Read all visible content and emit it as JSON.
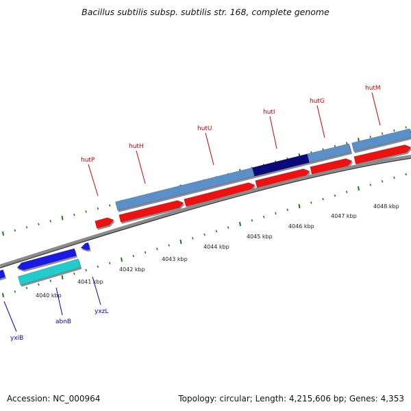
{
  "title": "Bacillus subtilis subsp. subtilis str. 168, complete genome",
  "footer": {
    "accession": "Accession: NC_000964",
    "summary": "Topology: circular; Length: 4,215,606 bp; Genes: 4,353"
  },
  "colors": {
    "forward_gene": "#ee1111",
    "reverse_gene": "#1a1ae6",
    "cds_light_blue": "#5b8fc7",
    "cds_dark_blue": "#0a0a7a",
    "cds_cyan": "#22cccc",
    "ticks": "#1a7a1a",
    "backbone": "#8a8a8a",
    "label_forward": "#cc0000",
    "label_reverse": "#0000cc"
  },
  "scale_labels": [
    "4040 kbp",
    "4041 kbp",
    "4042 kbp",
    "4043 kbp",
    "4044 kbp",
    "4045 kbp",
    "4046 kbp",
    "4047 kbp",
    "4048 kbp"
  ],
  "genes": [
    {
      "name": "hutP",
      "strand": "forward"
    },
    {
      "name": "hutH",
      "strand": "forward"
    },
    {
      "name": "hutU",
      "strand": "forward"
    },
    {
      "name": "hutI",
      "strand": "forward"
    },
    {
      "name": "hutG",
      "strand": "forward"
    },
    {
      "name": "hutM",
      "strand": "forward"
    },
    {
      "name": "yxiB",
      "strand": "reverse"
    },
    {
      "name": "abnB",
      "strand": "reverse"
    },
    {
      "name": "yxzL",
      "strand": "reverse"
    }
  ]
}
